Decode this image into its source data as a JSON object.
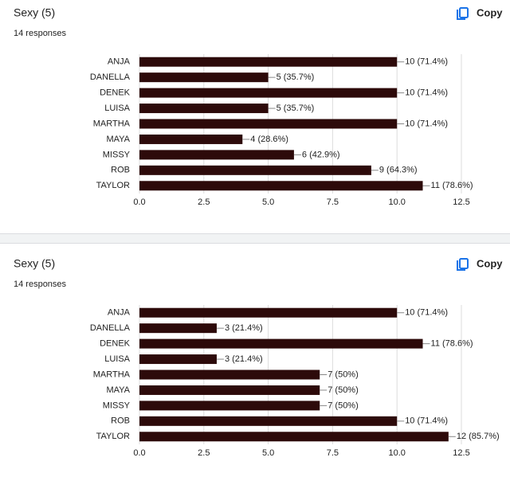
{
  "chart_data": [
    {
      "type": "bar",
      "orientation": "horizontal",
      "title": "Sexy (5)",
      "subtitle": "14 responses",
      "action": "Copy",
      "categories": [
        "ANJA",
        "DANELLA",
        "DENEK",
        "LUISA",
        "MARTHA",
        "MAYA",
        "MISSY",
        "ROB",
        "TAYLOR"
      ],
      "values": [
        10,
        5,
        10,
        5,
        10,
        4,
        6,
        9,
        11
      ],
      "value_labels": [
        "10 (71.4%)",
        "5 (35.7%)",
        "10 (71.4%)",
        "5 (35.7%)",
        "10 (71.4%)",
        "4 (28.6%)",
        "6 (42.9%)",
        "9 (64.3%)",
        "11 (78.6%)"
      ],
      "color": "#2d0a0a",
      "xlim": [
        0,
        12.5
      ],
      "xticks": [
        {
          "value": 0,
          "label": "0.0"
        },
        2.5,
        {
          "value": 5,
          "label": "5.0"
        },
        7.5,
        {
          "value": 10,
          "label": "10.0"
        },
        12.5
      ],
      "grid": true
    },
    {
      "type": "bar",
      "orientation": "horizontal",
      "title": "Sexy (5)",
      "subtitle": "14 responses",
      "action": "Copy",
      "categories": [
        "ANJA",
        "DANELLA",
        "DENEK",
        "LUISA",
        "MARTHA",
        "MAYA",
        "MISSY",
        "ROB",
        "TAYLOR"
      ],
      "values": [
        10,
        3,
        11,
        3,
        7,
        7,
        7,
        10,
        12
      ],
      "value_labels": [
        "10 (71.4%)",
        "3 (21.4%)",
        "11 (78.6%)",
        "3 (21.4%)",
        "7 (50%)",
        "7 (50%)",
        "7 (50%)",
        "10 (71.4%)",
        "12 (85.7%)"
      ],
      "color": "#2d0a0a",
      "xlim": [
        0,
        12.5
      ],
      "xticks": [
        {
          "value": 0,
          "label": "0.0"
        },
        2.5,
        {
          "value": 5,
          "label": "5.0"
        },
        7.5,
        {
          "value": 10,
          "label": "10.0"
        },
        12.5
      ],
      "grid": true
    }
  ]
}
